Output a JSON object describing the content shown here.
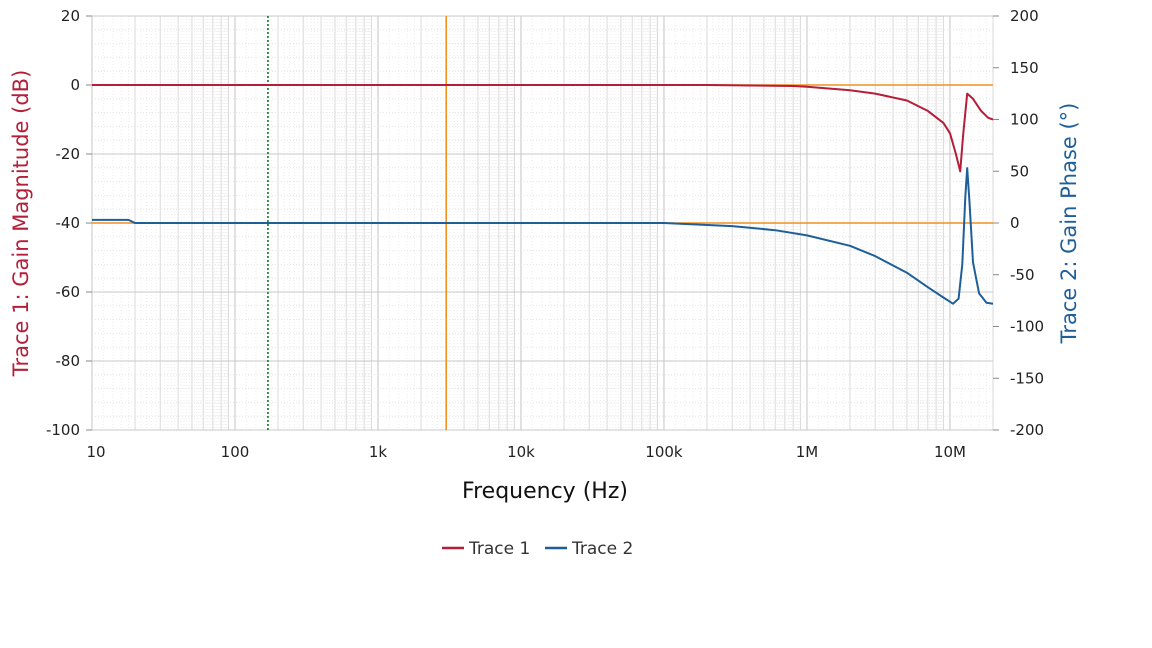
{
  "chart_data": {
    "type": "line",
    "xlabel": "Frequency (Hz)",
    "x_scale": "log",
    "xlim": [
      10,
      20000000
    ],
    "x_ticks": [
      {
        "value": 10,
        "label": "10"
      },
      {
        "value": 100,
        "label": "100"
      },
      {
        "value": 1000,
        "label": "1k"
      },
      {
        "value": 10000,
        "label": "10k"
      },
      {
        "value": 100000,
        "label": "100k"
      },
      {
        "value": 1000000,
        "label": "1M"
      },
      {
        "value": 10000000,
        "label": "10M"
      }
    ],
    "ylabel_left": "Trace 1: Gain Magnitude (dB)",
    "ylim_left": [
      -100,
      20
    ],
    "yticks_left": [
      "20",
      "0",
      "-20",
      "-40",
      "-60",
      "-80",
      "-100"
    ],
    "ylabel_right": "Trace 2: Gain Phase (°)",
    "ylim_right": [
      -200,
      200
    ],
    "yticks_right": [
      "200",
      "150",
      "100",
      "50",
      "0",
      "-50",
      "-100",
      "-150",
      "-200"
    ],
    "grid": true,
    "legend_position": "bottom",
    "cursors": {
      "vertical_x": 3000,
      "marker_x": 170,
      "horizontal_left_y": 0,
      "horizontal_right_y": 0
    },
    "series": [
      {
        "name": "Trace 1",
        "axis": "left",
        "color": "#b41e38",
        "points": [
          [
            10,
            0
          ],
          [
            200000,
            0
          ],
          [
            800000,
            -0.3
          ],
          [
            1000000,
            -0.5
          ],
          [
            2000000,
            -1.5
          ],
          [
            3000000,
            -2.5
          ],
          [
            5000000,
            -4.5
          ],
          [
            7000000,
            -7.5
          ],
          [
            9000000,
            -11
          ],
          [
            10000000,
            -14
          ],
          [
            11000000,
            -20
          ],
          [
            11800000,
            -25
          ],
          [
            12400000,
            -14
          ],
          [
            13200000,
            -2.5
          ],
          [
            14500000,
            -4
          ],
          [
            16500000,
            -7.5
          ],
          [
            18500000,
            -9.5
          ],
          [
            20000000,
            -10
          ]
        ]
      },
      {
        "name": "Trace 2",
        "axis": "right",
        "color": "#1f5f99",
        "points": [
          [
            10,
            3
          ],
          [
            18,
            3
          ],
          [
            20,
            0
          ],
          [
            100000,
            0
          ],
          [
            300000,
            -3
          ],
          [
            600000,
            -7
          ],
          [
            1000000,
            -12
          ],
          [
            2000000,
            -22
          ],
          [
            3000000,
            -32
          ],
          [
            5000000,
            -48
          ],
          [
            7000000,
            -62
          ],
          [
            9000000,
            -72
          ],
          [
            10500000,
            -78
          ],
          [
            11500000,
            -73
          ],
          [
            12200000,
            -40
          ],
          [
            12800000,
            25
          ],
          [
            13200000,
            53
          ],
          [
            13700000,
            20
          ],
          [
            14500000,
            -38
          ],
          [
            16000000,
            -68
          ],
          [
            18000000,
            -77
          ],
          [
            20000000,
            -78
          ]
        ]
      }
    ],
    "colors": {
      "cursor": "#f0901e",
      "marker": "#0a7a1a",
      "left_axis_label": "#b41e38",
      "right_axis_label": "#1f5f99"
    }
  }
}
